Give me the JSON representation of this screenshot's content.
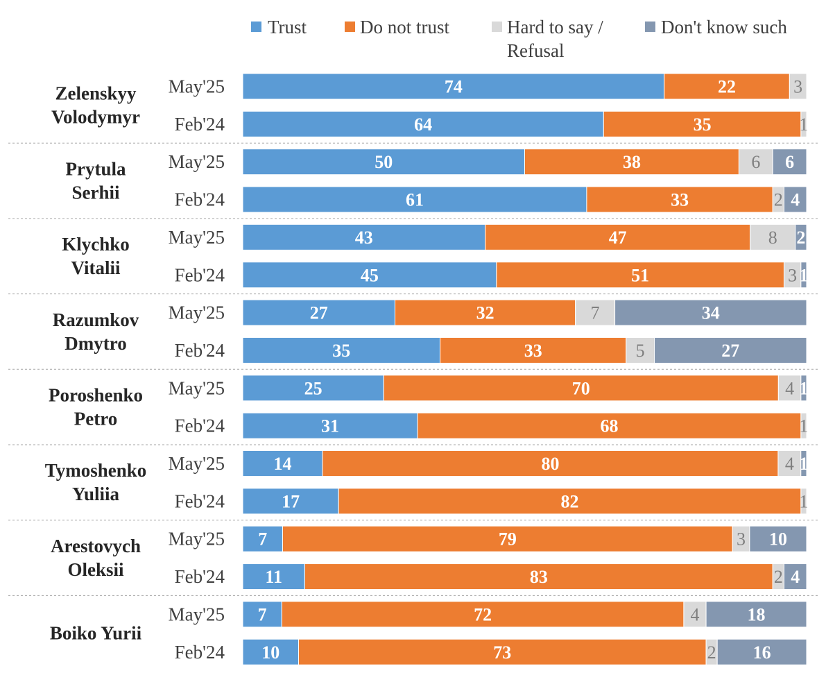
{
  "chart_data": {
    "type": "bar",
    "orientation": "horizontal",
    "stacked": true,
    "normalized_to": 100,
    "legend_position": "top",
    "legend": [
      {
        "key": "trust",
        "lines": [
          "Trust"
        ],
        "color": "#5b9bd5"
      },
      {
        "key": "not_trust",
        "lines": [
          "Do not trust"
        ],
        "color": "#ed7d31"
      },
      {
        "key": "hard",
        "lines": [
          "Hard to say /",
          "Refusal"
        ],
        "color": "#d9d9d9"
      },
      {
        "key": "dont_know",
        "lines": [
          "Don't know such"
        ],
        "color": "#8497b0"
      }
    ],
    "groups": [
      {
        "name": [
          "Zelenskyy",
          "Volodymyr"
        ],
        "rows": [
          {
            "period": "May'25",
            "values": [
              74,
              22,
              3,
              0
            ],
            "labels": [
              "74",
              "22",
              "3",
              ""
            ]
          },
          {
            "period": "Feb'24",
            "values": [
              64,
              35,
              1,
              0
            ],
            "labels": [
              "64",
              "35",
              "1",
              ""
            ]
          }
        ]
      },
      {
        "name": [
          "Prytula",
          "Serhii"
        ],
        "rows": [
          {
            "period": "May'25",
            "values": [
              50,
              38,
              6,
              6
            ],
            "labels": [
              "50",
              "38",
              "6",
              "6"
            ]
          },
          {
            "period": "Feb'24",
            "values": [
              61,
              33,
              2,
              4
            ],
            "labels": [
              "61",
              "33",
              "2",
              "4"
            ]
          }
        ]
      },
      {
        "name": [
          "Klychko",
          "Vitalii"
        ],
        "rows": [
          {
            "period": "May'25",
            "values": [
              43,
              47,
              8,
              2
            ],
            "labels": [
              "43",
              "47",
              "8",
              "2"
            ]
          },
          {
            "period": "Feb'24",
            "values": [
              45,
              51,
              3,
              1
            ],
            "labels": [
              "45",
              "51",
              "3",
              "1"
            ]
          }
        ]
      },
      {
        "name": [
          "Razumkov",
          "Dmytro"
        ],
        "rows": [
          {
            "period": "May'25",
            "values": [
              27,
              32,
              7,
              34
            ],
            "labels": [
              "27",
              "32",
              "7",
              "34"
            ]
          },
          {
            "period": "Feb'24",
            "values": [
              35,
              33,
              5,
              27
            ],
            "labels": [
              "35",
              "33",
              "5",
              "27"
            ]
          }
        ]
      },
      {
        "name": [
          "Poroshenko",
          "Petro"
        ],
        "rows": [
          {
            "period": "May'25",
            "values": [
              25,
              70,
              4,
              1
            ],
            "labels": [
              "25",
              "70",
              "4",
              "1"
            ]
          },
          {
            "period": "Feb'24",
            "values": [
              31,
              68,
              1,
              0
            ],
            "labels": [
              "31",
              "68",
              "1",
              ""
            ]
          }
        ]
      },
      {
        "name": [
          "Tymoshenko",
          "Yuliia"
        ],
        "rows": [
          {
            "period": "May'25",
            "values": [
              14,
              80,
              4,
              1
            ],
            "labels": [
              "14",
              "80",
              "4",
              "1"
            ]
          },
          {
            "period": "Feb'24",
            "values": [
              17,
              82,
              1,
              0
            ],
            "labels": [
              "17",
              "82",
              "1",
              ""
            ]
          }
        ]
      },
      {
        "name": [
          "Arestovych",
          "Oleksii"
        ],
        "rows": [
          {
            "period": "May'25",
            "values": [
              7,
              79,
              3,
              10
            ],
            "labels": [
              "7",
              "79",
              "3",
              "10"
            ]
          },
          {
            "period": "Feb'24",
            "values": [
              11,
              83,
              2,
              4
            ],
            "labels": [
              "11",
              "83",
              "2",
              "4"
            ]
          }
        ]
      },
      {
        "name": [
          "Boiko Yurii"
        ],
        "rows": [
          {
            "period": "May'25",
            "values": [
              7,
              72,
              4,
              18
            ],
            "labels": [
              "7",
              "72",
              "4",
              "18"
            ]
          },
          {
            "period": "Feb'24",
            "values": [
              10,
              73,
              2,
              16
            ],
            "labels": [
              "10",
              "73",
              "2",
              "16"
            ]
          }
        ]
      }
    ]
  }
}
